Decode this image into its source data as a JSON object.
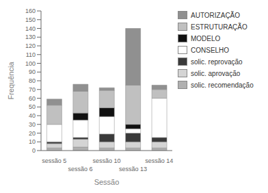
{
  "chart_data": {
    "type": "bar",
    "stacked": true,
    "grid": false,
    "legend": "right",
    "ylabel": "Frequência",
    "xlabel": "Sessão",
    "categories": [
      "sessão 5",
      "sessão 6",
      "sessão 10",
      "sessão 13",
      "sessão 14"
    ],
    "ylim": [
      0,
      160
    ],
    "yticks": [
      0,
      10,
      20,
      30,
      40,
      50,
      60,
      70,
      80,
      90,
      100,
      110,
      120,
      130,
      140,
      150,
      160
    ],
    "series": [
      {
        "name": "solic. recomendação",
        "color": "#b0b0b0",
        "values": [
          3,
          4,
          3,
          3,
          3
        ]
      },
      {
        "name": "solic. aprovação",
        "color": "#d4d4d4",
        "values": [
          5,
          9,
          7,
          7,
          7
        ]
      },
      {
        "name": "solic. reprovação",
        "color": "#3a3a3a",
        "values": [
          2,
          2,
          9,
          10,
          5
        ]
      },
      {
        "name": "CONSELHO",
        "color": "#ffffff",
        "values": [
          20,
          20,
          20,
          5,
          45
        ]
      },
      {
        "name": "MODELO",
        "color": "#111111",
        "values": [
          0,
          8,
          10,
          5,
          0
        ]
      },
      {
        "name": "ESTRUTURAÇÃO",
        "color": "#c0c0c0",
        "values": [
          22,
          25,
          20,
          45,
          10
        ]
      },
      {
        "name": "AUTORIZAÇÃO",
        "color": "#909090",
        "values": [
          7,
          8,
          3,
          65,
          5
        ]
      }
    ]
  }
}
